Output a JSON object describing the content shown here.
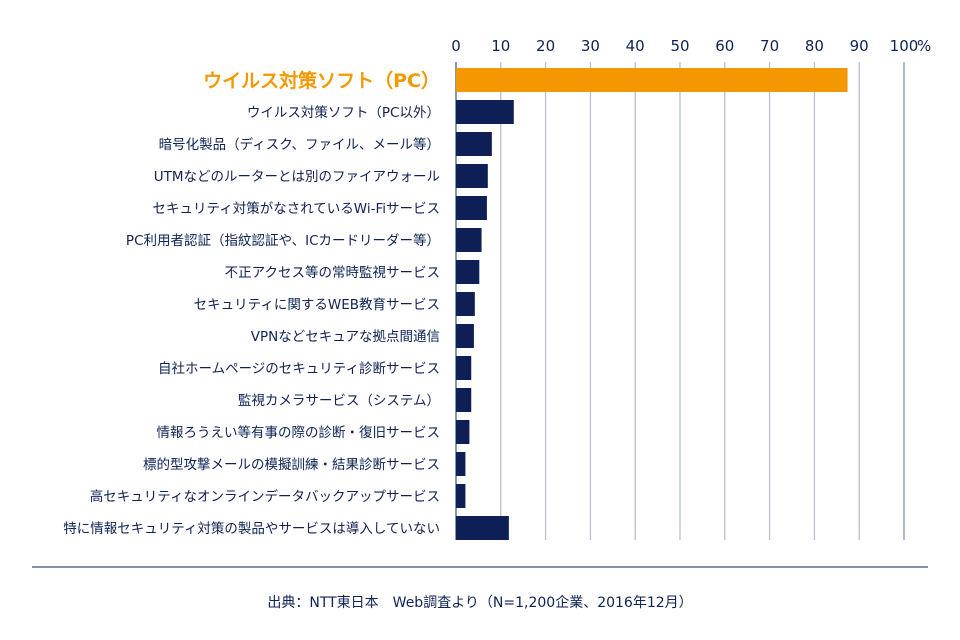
{
  "chart_data": {
    "type": "bar",
    "orientation": "horizontal",
    "categories": [
      "ウイルス対策ソフト（PC）",
      "ウイルス対策ソフト（PC以外）",
      "暗号化製品（ディスク、ファイル、メール等）",
      "UTMなどのルーターとは別のファイアウォール",
      "セキュリティ対策がなされているWi-Fiサービス",
      "PC利用者認証（指紋認証や、ICカードリーダー等）",
      "不正アクセス等の常時監視サービス",
      "セキュリティに関するWEB教育サービス",
      "VPNなどセキュアな拠点間通信",
      "自社ホームページのセキュリティ診断サービス",
      "監視カメラサービス（システム）",
      "情報ろうえい等有事の際の診断・復旧サービス",
      "標的型攻撃メールの模擬訓練・結果診断サービス",
      "高セキュリティなオンラインデータバックアップサービス",
      "特に情報セキュリティ対策の製品やサービスは導入していない"
    ],
    "values": [
      87.4,
      12.9,
      8.0,
      7.1,
      6.9,
      5.7,
      5.2,
      4.2,
      4.0,
      3.4,
      3.4,
      3.0,
      2.1,
      2.1,
      11.8
    ],
    "highlight_index": 0,
    "xlim": [
      0,
      100
    ],
    "xticks": [
      "0",
      "10",
      "20",
      "30",
      "40",
      "50",
      "60",
      "70",
      "80",
      "90",
      "100"
    ],
    "xunit": "%",
    "grid": true,
    "colors": {
      "highlight": "#f39800",
      "bar": "#0d1f55",
      "grid": "#b9c1d6",
      "text": "#0e2257"
    }
  },
  "footer": {
    "source": "出典：NTT東日本　Web調査より（N=1,200企業、2016年12月）"
  }
}
